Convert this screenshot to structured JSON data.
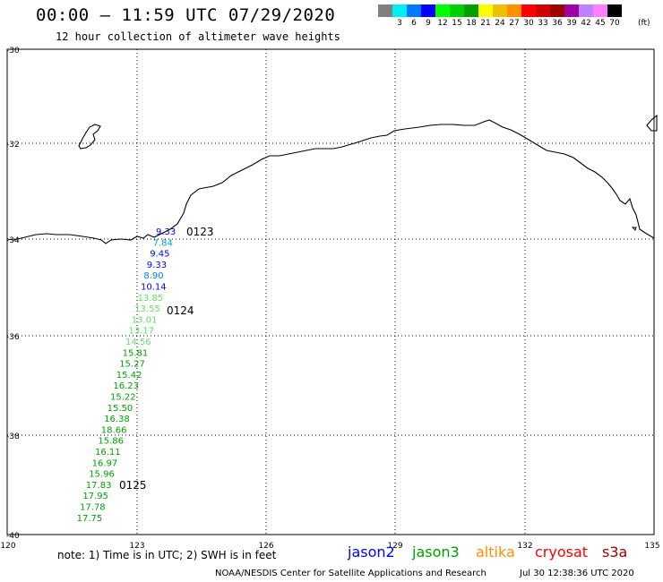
{
  "header": {
    "title": "00:00 – 11:59 UTC 07/29/2020",
    "subtitle": "12 hour collection of altimeter wave heights"
  },
  "colorbar": {
    "colors": [
      "#808080",
      "#00f0f0",
      "#0078ff",
      "#0000ff",
      "#00ff00",
      "#00d000",
      "#00a000",
      "#ffff00",
      "#f0c000",
      "#ff9000",
      "#ff0000",
      "#d00000",
      "#a00000",
      "#a000a0",
      "#c080ff",
      "#ff80ff",
      "#000000"
    ],
    "labels": [
      "",
      "3",
      "6",
      "9",
      "12",
      "15",
      "18",
      "21",
      "24",
      "27",
      "30",
      "33",
      "36",
      "39",
      "42",
      "45",
      "70"
    ],
    "unit": "(ft)"
  },
  "map": {
    "lat_labels": [
      "-30",
      "-32",
      "-34",
      "-36",
      "-38",
      "-40"
    ],
    "lon_labels": [
      "120",
      "123",
      "126",
      "129",
      "132",
      "135"
    ],
    "pass_labels": [
      {
        "text": "0123",
        "color": "#a00000"
      },
      {
        "text": "0124",
        "color": "#a00000"
      },
      {
        "text": "0125",
        "color": "#a00000"
      }
    ],
    "swh_observations": [
      {
        "value": "9.33",
        "color": "#0000ff"
      },
      {
        "value": "7.84",
        "color": "#00a0d0"
      },
      {
        "value": "9.45",
        "color": "#0000ff"
      },
      {
        "value": "9.33",
        "color": "#0000ff"
      },
      {
        "value": "8.90",
        "color": "#0078ff"
      },
      {
        "value": "10.14",
        "color": "#0000ff"
      },
      {
        "value": "13.85",
        "color": "#66dd66"
      },
      {
        "value": "13.55",
        "color": "#66dd66"
      },
      {
        "value": "13.01",
        "color": "#66dd66"
      },
      {
        "value": "13.17",
        "color": "#66dd66"
      },
      {
        "value": "14.56",
        "color": "#66dd66"
      },
      {
        "value": "15.81",
        "color": "#00a000"
      },
      {
        "value": "15.27",
        "color": "#00a000"
      },
      {
        "value": "15.42",
        "color": "#00a000"
      },
      {
        "value": "16.23",
        "color": "#00a000"
      },
      {
        "value": "15.22",
        "color": "#00a000"
      },
      {
        "value": "15.50",
        "color": "#00a000"
      },
      {
        "value": "16.38",
        "color": "#00a000"
      },
      {
        "value": "18.66",
        "color": "#00a000"
      },
      {
        "value": "15.86",
        "color": "#00a000"
      },
      {
        "value": "16.11",
        "color": "#00a000"
      },
      {
        "value": "16.97",
        "color": "#00a000"
      },
      {
        "value": "15.96",
        "color": "#00a000"
      },
      {
        "value": "17.83",
        "color": "#00a000"
      },
      {
        "value": "17.95",
        "color": "#00a000"
      },
      {
        "value": "17.78",
        "color": "#00a000"
      },
      {
        "value": "17.75",
        "color": "#00a000"
      }
    ]
  },
  "footer": {
    "note": "note: 1) Time is in UTC; 2) SWH is in feet",
    "missions": [
      {
        "name": "jason2",
        "color": "#0000ff"
      },
      {
        "name": "jason3",
        "color": "#00a000"
      },
      {
        "name": "altika",
        "color": "#ff9000"
      },
      {
        "name": "cryosat",
        "color": "#ff0000"
      },
      {
        "name": "s3a",
        "color": "#a00000"
      }
    ],
    "credits": "NOAA/NESDIS Center for Satellite Applications and Research",
    "timestamp": "Jul 30 12:38:36 UTC 2020"
  }
}
